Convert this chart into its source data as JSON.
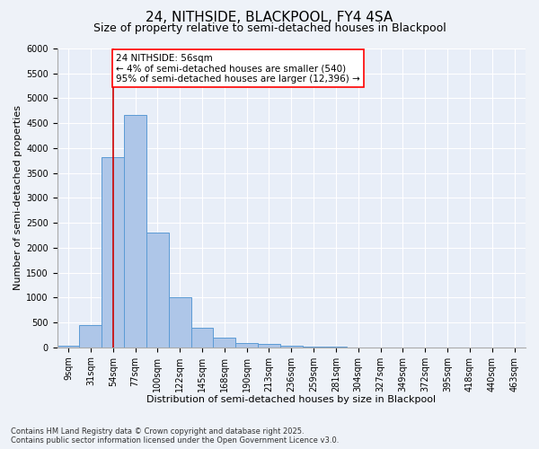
{
  "title": "24, NITHSIDE, BLACKPOOL, FY4 4SA",
  "subtitle": "Size of property relative to semi-detached houses in Blackpool",
  "xlabel": "Distribution of semi-detached houses by size in Blackpool",
  "ylabel": "Number of semi-detached properties",
  "footer_line1": "Contains HM Land Registry data © Crown copyright and database right 2025.",
  "footer_line2": "Contains public sector information licensed under the Open Government Licence v3.0.",
  "bar_labels": [
    "9sqm",
    "31sqm",
    "54sqm",
    "77sqm",
    "100sqm",
    "122sqm",
    "145sqm",
    "168sqm",
    "190sqm",
    "213sqm",
    "236sqm",
    "259sqm",
    "281sqm",
    "304sqm",
    "327sqm",
    "349sqm",
    "372sqm",
    "395sqm",
    "418sqm",
    "440sqm",
    "463sqm"
  ],
  "bar_values": [
    30,
    450,
    3820,
    4660,
    2300,
    1000,
    400,
    190,
    90,
    60,
    40,
    10,
    5,
    2,
    1,
    0,
    0,
    0,
    0,
    0,
    0
  ],
  "bar_color": "#aec6e8",
  "bar_edge_color": "#5b9bd5",
  "annotation_text": "24 NITHSIDE: 56sqm\n← 4% of semi-detached houses are smaller (540)\n95% of semi-detached houses are larger (12,396) →",
  "vline_x": 2.0,
  "vline_color": "#cc0000",
  "ylim": [
    0,
    6000
  ],
  "yticks": [
    0,
    500,
    1000,
    1500,
    2000,
    2500,
    3000,
    3500,
    4000,
    4500,
    5000,
    5500,
    6000
  ],
  "bg_color": "#e8eef8",
  "grid_color": "#ffffff",
  "fig_bg_color": "#eef2f8",
  "title_fontsize": 11,
  "subtitle_fontsize": 9,
  "axis_label_fontsize": 8,
  "tick_fontsize": 7,
  "annotation_fontsize": 7.5,
  "footer_fontsize": 6
}
